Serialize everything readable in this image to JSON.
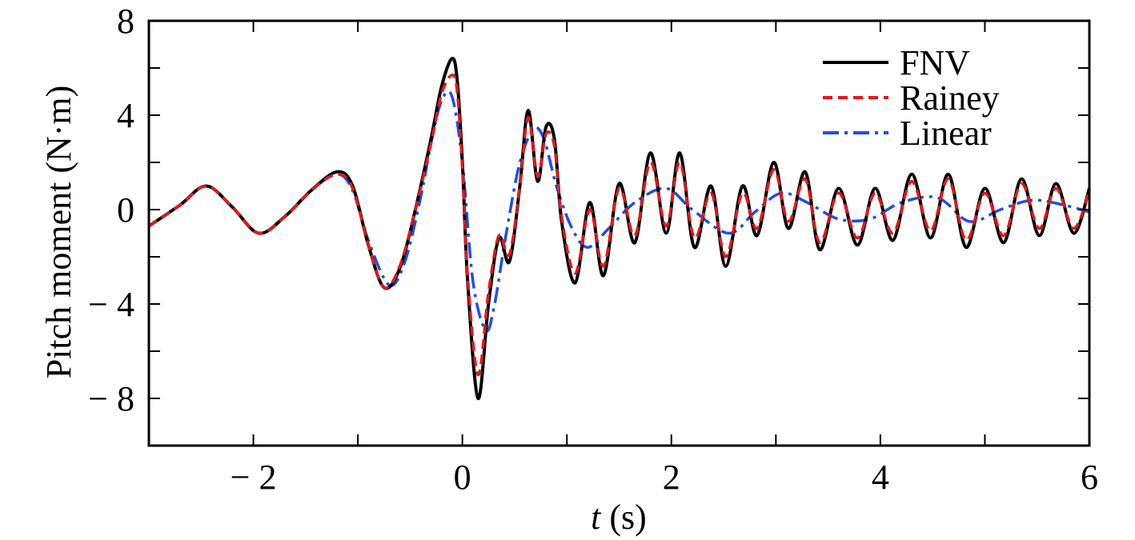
{
  "chart_data": {
    "type": "line",
    "title": "",
    "xlabel": {
      "var": "t",
      "unit": " (s)"
    },
    "ylabel": "Pitch moment (N·m)",
    "xlim": [
      -3,
      6
    ],
    "ylim": [
      -10,
      8
    ],
    "xticks": [
      -2,
      0,
      2,
      4,
      6
    ],
    "xtick_labels": [
      "− 2",
      "0",
      "2",
      "4",
      "6"
    ],
    "yticks": [
      8,
      4,
      0,
      -4,
      -8
    ],
    "ytick_labels": [
      "8",
      "4",
      "0",
      "− 4",
      "− 8"
    ],
    "grid": false,
    "legend": "top-right",
    "series": [
      {
        "name": "FNV",
        "color": "#000000",
        "style": "solid",
        "x": [
          -3,
          -2.7,
          -2.45,
          -2.2,
          -1.95,
          -1.7,
          -1.45,
          -1.2,
          -1.05,
          -0.9,
          -0.75,
          -0.6,
          -0.45,
          -0.3,
          -0.2,
          -0.1,
          -0.05,
          0,
          0.05,
          0.15,
          0.25,
          0.35,
          0.45,
          0.55,
          0.63,
          0.72,
          0.8,
          0.88,
          0.95,
          1.08,
          1.22,
          1.35,
          1.5,
          1.65,
          1.8,
          1.95,
          2.08,
          2.22,
          2.38,
          2.52,
          2.68,
          2.82,
          2.98,
          3.12,
          3.28,
          3.42,
          3.6,
          3.78,
          3.95,
          4.12,
          4.3,
          4.48,
          4.65,
          4.82,
          5.0,
          5.18,
          5.35,
          5.52,
          5.68,
          5.85,
          6.0
        ],
        "y": [
          -0.7,
          0.2,
          1.0,
          0.1,
          -1.0,
          -0.3,
          0.8,
          1.6,
          1.0,
          -1.5,
          -3.3,
          -2.5,
          0.0,
          3.0,
          5.2,
          6.4,
          5.5,
          2.0,
          -3.0,
          -8.0,
          -4.0,
          -1.2,
          -2.2,
          1.0,
          4.2,
          1.2,
          3.5,
          3.0,
          -0.5,
          -3.1,
          0.3,
          -2.8,
          1.1,
          -1.4,
          2.4,
          -1.0,
          2.4,
          -1.6,
          1.0,
          -2.4,
          1.0,
          -1.1,
          2.0,
          -0.8,
          1.6,
          -1.7,
          0.9,
          -1.5,
          0.9,
          -1.3,
          1.5,
          -1.2,
          1.5,
          -1.6,
          0.9,
          -1.4,
          1.3,
          -1.1,
          1.1,
          -1.0,
          0.9
        ]
      },
      {
        "name": "Rainey",
        "color": "#e8161a",
        "style": "dashed",
        "x": [
          -3,
          -2.7,
          -2.45,
          -2.2,
          -1.95,
          -1.7,
          -1.45,
          -1.2,
          -1.05,
          -0.9,
          -0.75,
          -0.6,
          -0.45,
          -0.3,
          -0.2,
          -0.1,
          -0.05,
          0,
          0.05,
          0.15,
          0.25,
          0.35,
          0.45,
          0.55,
          0.63,
          0.72,
          0.8,
          0.88,
          0.95,
          1.08,
          1.22,
          1.35,
          1.5,
          1.65,
          1.8,
          1.95,
          2.08,
          2.22,
          2.38,
          2.52,
          2.68,
          2.82,
          2.98,
          3.12,
          3.28,
          3.42,
          3.6,
          3.78,
          3.95,
          4.12,
          4.3,
          4.48,
          4.65,
          4.82,
          5.0,
          5.18,
          5.35,
          5.52,
          5.68,
          5.85,
          6.0
        ],
        "y": [
          -0.7,
          0.2,
          1.0,
          0.1,
          -1.0,
          -0.3,
          0.8,
          1.5,
          0.9,
          -1.5,
          -3.3,
          -2.4,
          0.0,
          2.8,
          4.9,
          5.7,
          5.0,
          1.7,
          -2.8,
          -7.0,
          -3.5,
          -1.1,
          -1.9,
          1.0,
          3.9,
          1.4,
          3.2,
          2.7,
          -0.3,
          -2.7,
          0.0,
          -2.4,
          0.9,
          -1.1,
          2.0,
          -0.7,
          2.0,
          -1.2,
          0.7,
          -2.0,
          0.7,
          -0.8,
          1.7,
          -0.5,
          1.3,
          -1.4,
          0.7,
          -1.2,
          0.7,
          -1.0,
          1.2,
          -0.9,
          1.3,
          -1.3,
          0.7,
          -1.1,
          1.1,
          -0.8,
          0.9,
          -0.8,
          0.8
        ]
      },
      {
        "name": "Linear",
        "color": "#1f4ee8",
        "style": "dashdot",
        "x": [
          -3,
          -2.7,
          -2.45,
          -2.2,
          -1.95,
          -1.7,
          -1.45,
          -1.2,
          -1.05,
          -0.9,
          -0.7,
          -0.55,
          -0.4,
          -0.3,
          -0.2,
          -0.1,
          0,
          0.1,
          0.22,
          0.3,
          0.42,
          0.55,
          0.68,
          0.78,
          0.9,
          1.05,
          1.2,
          1.4,
          1.65,
          1.95,
          2.2,
          2.55,
          2.8,
          3.05,
          3.3,
          3.6,
          3.9,
          4.2,
          4.55,
          4.85,
          5.15,
          5.45,
          5.75,
          6.0
        ],
        "y": [
          -0.7,
          0.2,
          1.0,
          0.1,
          -1.0,
          -0.3,
          0.8,
          1.5,
          0.8,
          -1.3,
          -3.2,
          -2.2,
          0.5,
          2.8,
          4.6,
          4.8,
          2.0,
          -3.0,
          -5.1,
          -4.2,
          -1.0,
          2.0,
          3.4,
          3.0,
          1.0,
          -0.8,
          -1.6,
          -0.8,
          0.3,
          0.9,
          0.0,
          -1.0,
          -0.1,
          0.7,
          0.3,
          -0.4,
          -0.4,
          0.3,
          0.5,
          -0.5,
          0.0,
          0.4,
          0.2,
          -0.1
        ]
      }
    ]
  }
}
